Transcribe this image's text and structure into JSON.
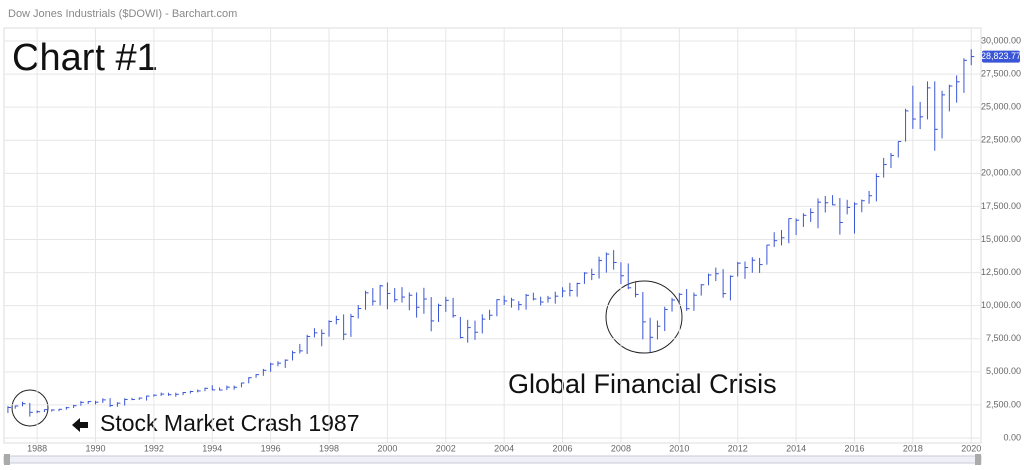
{
  "chart_data": {
    "type": "ohlc",
    "title": "Dow Jones Industrials ($DOWI) - Barchart.com",
    "annotations": [
      "Chart #1",
      "Stock Market Crash 1987",
      "Global Financial Crisis"
    ],
    "color": "#3a55d6",
    "last_value_label": "28,823.77",
    "x": [
      1987,
      1987.25,
      1987.5,
      1987.75,
      1988,
      1988.25,
      1988.5,
      1988.75,
      1989,
      1989.25,
      1989.5,
      1989.75,
      1990,
      1990.25,
      1990.5,
      1990.75,
      1991,
      1991.25,
      1991.5,
      1991.75,
      1992,
      1992.25,
      1992.5,
      1992.75,
      1993,
      1993.25,
      1993.5,
      1993.75,
      1994,
      1994.25,
      1994.5,
      1994.75,
      1995,
      1995.25,
      1995.5,
      1995.75,
      1996,
      1996.25,
      1996.5,
      1996.75,
      1997,
      1997.25,
      1997.5,
      1997.75,
      1998,
      1998.25,
      1998.5,
      1998.75,
      1999,
      1999.25,
      1999.5,
      1999.75,
      2000,
      2000.25,
      2000.5,
      2000.75,
      2001,
      2001.25,
      2001.5,
      2001.75,
      2002,
      2002.25,
      2002.5,
      2002.75,
      2003,
      2003.25,
      2003.5,
      2003.75,
      2004,
      2004.25,
      2004.5,
      2004.75,
      2005,
      2005.25,
      2005.5,
      2005.75,
      2006,
      2006.25,
      2006.5,
      2006.75,
      2007,
      2007.25,
      2007.5,
      2007.75,
      2008,
      2008.25,
      2008.5,
      2008.75,
      2009,
      2009.25,
      2009.5,
      2009.75,
      2010,
      2010.25,
      2010.5,
      2010.75,
      2011,
      2011.25,
      2011.5,
      2011.75,
      2012,
      2012.25,
      2012.5,
      2012.75,
      2013,
      2013.25,
      2013.5,
      2013.75,
      2014,
      2014.25,
      2014.5,
      2014.75,
      2015,
      2015.25,
      2015.5,
      2015.75,
      2016,
      2016.25,
      2016.5,
      2016.75,
      2017,
      2017.25,
      2017.5,
      2017.75,
      2018,
      2018.25,
      2018.5,
      2018.75,
      2019,
      2019.25,
      2019.5,
      2019.75,
      2020
    ],
    "high": [
      2410,
      2450,
      2740,
      2650,
      2080,
      2160,
      2170,
      2190,
      2350,
      2510,
      2800,
      2800,
      2810,
      3000,
      3010,
      2700,
      3000,
      3040,
      3060,
      3200,
      3300,
      3430,
      3420,
      3420,
      3480,
      3570,
      3660,
      3800,
      3990,
      3820,
      3960,
      3960,
      4170,
      4600,
      4830,
      5220,
      5690,
      5800,
      5940,
      6600,
      7110,
      7800,
      8300,
      8200,
      8900,
      9240,
      9340,
      9380,
      10050,
      11130,
      11330,
      11570,
      11750,
      11330,
      11400,
      11000,
      11000,
      11350,
      10650,
      10150,
      10670,
      10590,
      9150,
      8930,
      8870,
      9350,
      9690,
      10490,
      10760,
      10600,
      10340,
      10880,
      10980,
      10680,
      10740,
      11060,
      11390,
      11720,
      11730,
      12530,
      12800,
      13700,
      14020,
      14200,
      13280,
      13190,
      11870,
      11030,
      9090,
      8880,
      9920,
      10590,
      10950,
      11260,
      10990,
      11620,
      12420,
      12880,
      12760,
      12290,
      13300,
      13340,
      13660,
      13610,
      14590,
      15550,
      15710,
      16590,
      16590,
      16980,
      17350,
      18100,
      18290,
      18350,
      18140,
      18000,
      17810,
      18020,
      18670,
      19990,
      21170,
      21540,
      22420,
      24880,
      26620,
      25400,
      26950,
      26950,
      26240,
      26700,
      27400,
      28700,
      29370
    ],
    "low": [
      1895,
      2215,
      2390,
      1620,
      1880,
      1960,
      2000,
      2030,
      2140,
      2270,
      2440,
      2570,
      2540,
      2650,
      2340,
      2360,
      2450,
      2860,
      2880,
      2830,
      3120,
      3180,
      3190,
      3120,
      3240,
      3360,
      3450,
      3540,
      3590,
      3590,
      3620,
      3650,
      3830,
      4130,
      4550,
      4700,
      5000,
      5420,
      5300,
      5860,
      6390,
      6350,
      7600,
      6930,
      7660,
      8590,
      7400,
      7640,
      9030,
      9690,
      10010,
      10020,
      9730,
      10260,
      10230,
      9650,
      9100,
      9390,
      8060,
      8770,
      9530,
      9090,
      7530,
      7200,
      7420,
      7900,
      8920,
      9200,
      10050,
      9850,
      9650,
      9700,
      10400,
      10010,
      10230,
      10150,
      10640,
      10700,
      10680,
      11650,
      11930,
      12050,
      12500,
      12720,
      11630,
      11240,
      10630,
      7450,
      6470,
      7450,
      8080,
      9550,
      10100,
      9610,
      9610,
      10760,
      11540,
      11860,
      10600,
      10400,
      12200,
      12030,
      12490,
      12470,
      13100,
      14440,
      14550,
      14720,
      15340,
      15950,
      16330,
      15850,
      17040,
      17590,
      15370,
      16900,
      15450,
      17060,
      17700,
      17880,
      19680,
      20400,
      21200,
      22400,
      23360,
      23340,
      24080,
      21710,
      22640,
      24680,
      25340,
      26080,
      28170
    ],
    "close": [
      2305,
      2419,
      2596,
      1939,
      1988,
      2142,
      2113,
      2169,
      2293,
      2440,
      2693,
      2753,
      2707,
      2881,
      2453,
      2634,
      2914,
      2907,
      3017,
      3169,
      3236,
      3319,
      3272,
      3301,
      3435,
      3516,
      3555,
      3754,
      3636,
      3625,
      3843,
      3834,
      4158,
      4556,
      4789,
      5117,
      5587,
      5655,
      5882,
      6448,
      6584,
      7673,
      7945,
      7908,
      8800,
      8952,
      7843,
      9181,
      9786,
      10971,
      10337,
      11497,
      10922,
      10448,
      10651,
      10787,
      9879,
      10502,
      8848,
      10022,
      10404,
      9243,
      7592,
      8342,
      7992,
      8985,
      9275,
      10454,
      10358,
      10435,
      10080,
      10783,
      10504,
      10275,
      10569,
      10718,
      11109,
      11150,
      11679,
      12463,
      12354,
      13409,
      13896,
      13265,
      12262,
      11350,
      10851,
      8776,
      7609,
      8447,
      9712,
      10428,
      10857,
      9774,
      10788,
      11578,
      12320,
      12414,
      10913,
      12218,
      13212,
      12880,
      13437,
      13104,
      14579,
      14910,
      15130,
      16577,
      16458,
      16827,
      17043,
      17823,
      17776,
      17620,
      16285,
      17425,
      17685,
      17930,
      18308,
      19763,
      20663,
      21350,
      22405,
      24719,
      24103,
      24271,
      26458,
      23327,
      25929,
      26600,
      26917,
      28538,
      28823.77
    ],
    "xlim": [
      1986.9,
      2020.3
    ],
    "xticks": [
      1988,
      1990,
      1992,
      1994,
      1996,
      1998,
      2000,
      2002,
      2004,
      2006,
      2008,
      2010,
      2012,
      2014,
      2016,
      2018,
      2020
    ],
    "ylim": [
      0,
      30000
    ],
    "yticks": [
      {
        "value": 0,
        "label": "0.00"
      },
      {
        "value": 2500,
        "label": "2,500.00"
      },
      {
        "value": 5000,
        "label": "5,000.00"
      },
      {
        "value": 7500,
        "label": "7,500.00"
      },
      {
        "value": 10000,
        "label": "10,000.00"
      },
      {
        "value": 12500,
        "label": "12,500.00"
      },
      {
        "value": 15000,
        "label": "15,000.00"
      },
      {
        "value": 17500,
        "label": "17,500.00"
      },
      {
        "value": 20000,
        "label": "20,000.00"
      },
      {
        "value": 22500,
        "label": "22,500.00"
      },
      {
        "value": 25000,
        "label": "25,000.00"
      },
      {
        "value": 27500,
        "label": "27,500.00"
      },
      {
        "value": 30000,
        "label": "30,000.00"
      }
    ],
    "grid": true
  }
}
